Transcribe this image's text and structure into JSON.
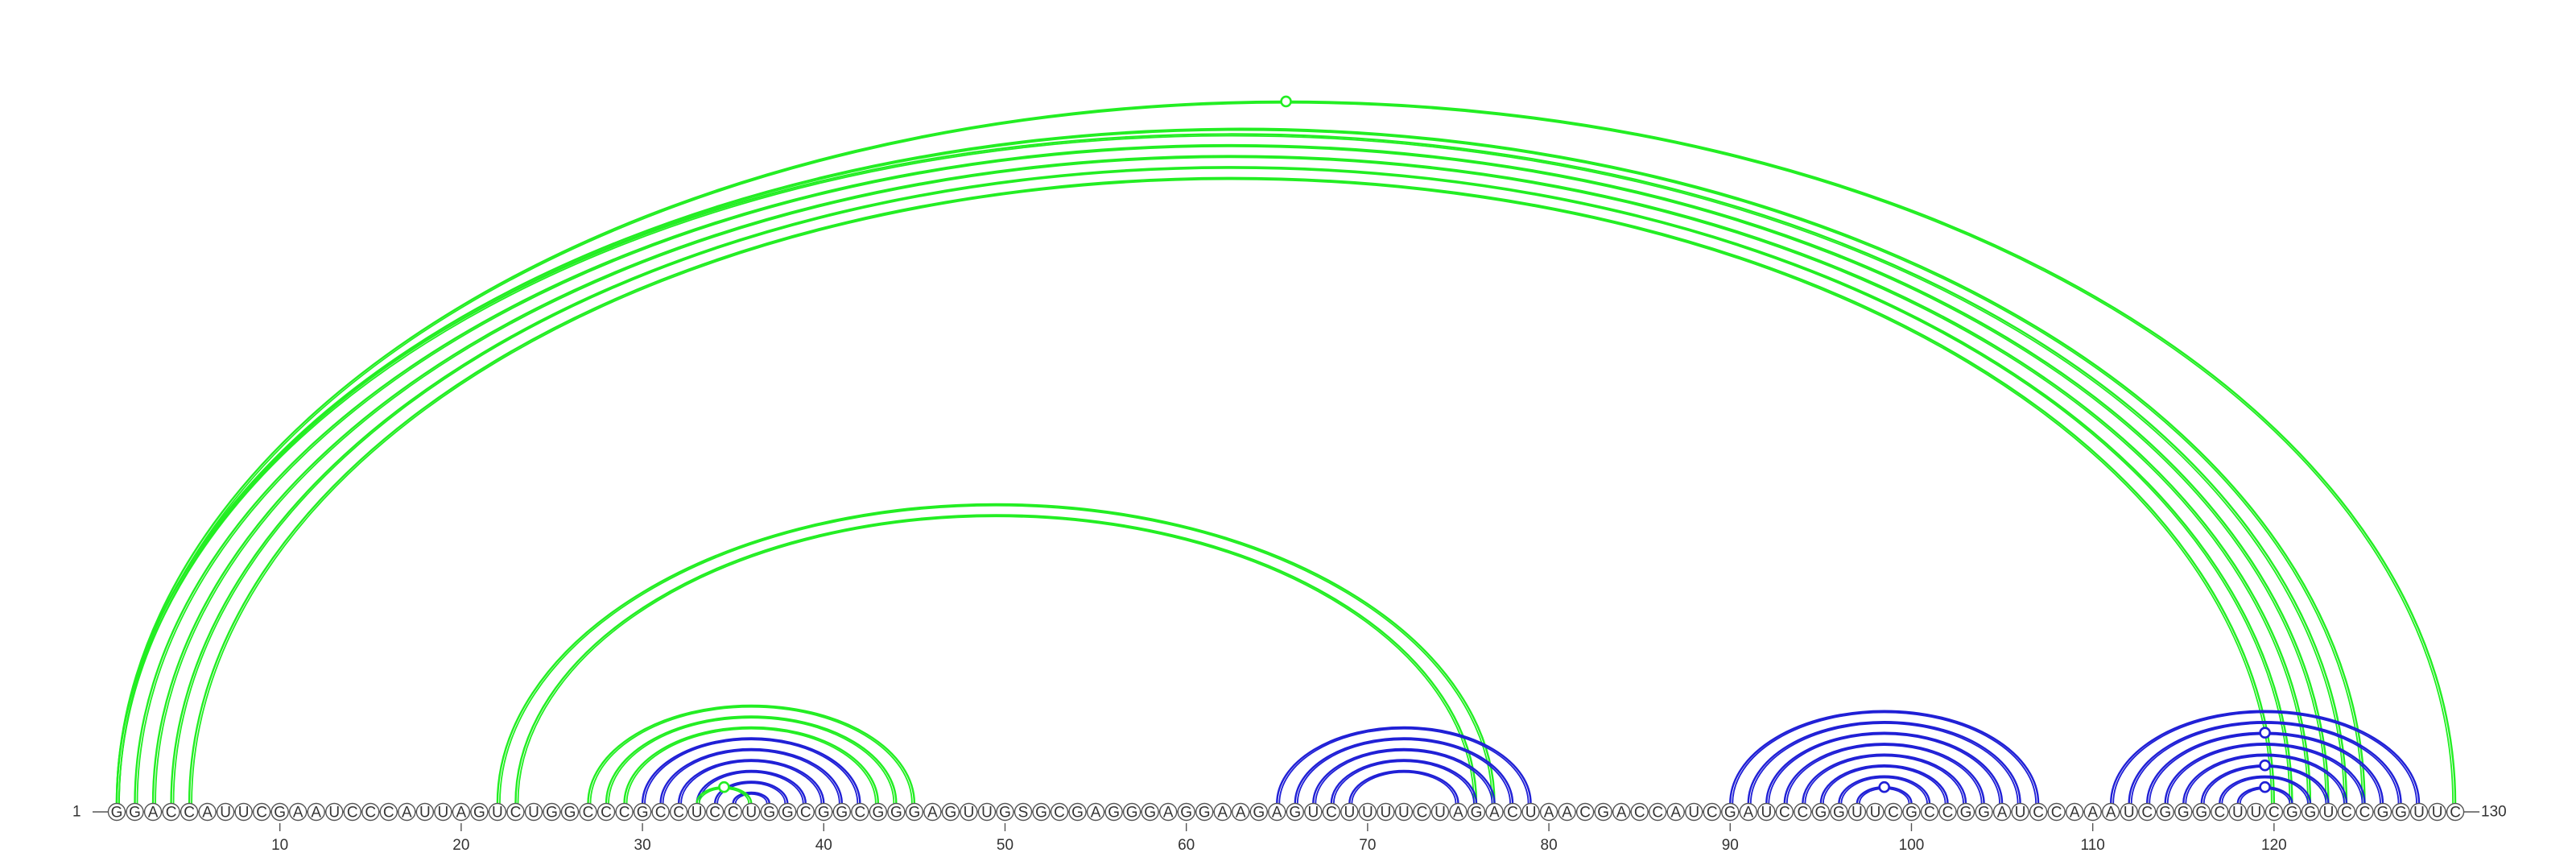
{
  "sequence": "GGACCAUUCGAAUCCCAUUAGUCUGGCCCGCCUCCUGGCGGCGGGAGUUGSGCGAGGGAGGAAGAGUCUUUUCUAGACUAACGACCAUCGAUCCGGUUCGCCGGAUCCAAAUCGGGCUUCGGUCCGGUUC",
  "start_label": "1",
  "end_label": "130",
  "ticks": [
    "10",
    "20",
    "30",
    "40",
    "50",
    "60",
    "70",
    "80",
    "90",
    "100",
    "110",
    "120"
  ],
  "tick_step": 10,
  "colors": {
    "green": "#22ee22",
    "blue": "#1f1fd6",
    "node_stroke": "#555555",
    "text": "#333333"
  },
  "arcs": [
    {
      "i": 1,
      "j": 125,
      "color": "green",
      "double": true
    },
    {
      "i": 1,
      "j": 124,
      "color": "green",
      "double": true
    },
    {
      "i": 2,
      "j": 123,
      "color": "green",
      "double": true
    },
    {
      "i": 3,
      "j": 122,
      "color": "green",
      "double": true
    },
    {
      "i": 4,
      "j": 121,
      "color": "green",
      "double": true
    },
    {
      "i": 5,
      "j": 120,
      "color": "green",
      "double": true
    },
    {
      "i": 1,
      "j": 130,
      "color": "green",
      "double": true
    },
    {
      "i": 22,
      "j": 77,
      "color": "green",
      "double": true
    },
    {
      "i": 23,
      "j": 76,
      "color": "green",
      "double": true
    },
    {
      "i": 27,
      "j": 45,
      "color": "green",
      "double": true
    },
    {
      "i": 28,
      "j": 44,
      "color": "green",
      "double": true
    },
    {
      "i": 29,
      "j": 43,
      "color": "green",
      "double": true
    },
    {
      "i": 30,
      "j": 42,
      "color": "blue",
      "double": true
    },
    {
      "i": 31,
      "j": 41,
      "color": "blue",
      "double": true
    },
    {
      "i": 32,
      "j": 40,
      "color": "blue",
      "double": true
    },
    {
      "i": 33,
      "j": 39,
      "color": "blue",
      "double": true
    },
    {
      "i": 34,
      "j": 38,
      "color": "blue",
      "double": true
    },
    {
      "i": 35,
      "j": 37,
      "color": "blue",
      "double": true
    },
    {
      "i": 33,
      "j": 36,
      "color": "green",
      "double": true
    },
    {
      "i": 65,
      "j": 79,
      "color": "blue",
      "double": true
    },
    {
      "i": 66,
      "j": 78,
      "color": "blue",
      "double": true
    },
    {
      "i": 67,
      "j": 77,
      "color": "blue",
      "double": true
    },
    {
      "i": 68,
      "j": 76,
      "color": "blue",
      "double": true
    },
    {
      "i": 69,
      "j": 75,
      "color": "blue",
      "double": true
    },
    {
      "i": 90,
      "j": 107,
      "color": "blue",
      "double": true
    },
    {
      "i": 91,
      "j": 106,
      "color": "blue",
      "double": true
    },
    {
      "i": 92,
      "j": 105,
      "color": "blue",
      "double": true
    },
    {
      "i": 93,
      "j": 104,
      "color": "blue",
      "double": true
    },
    {
      "i": 94,
      "j": 103,
      "color": "blue",
      "double": true
    },
    {
      "i": 95,
      "j": 102,
      "color": "blue",
      "double": true
    },
    {
      "i": 96,
      "j": 101,
      "color": "blue",
      "double": true
    },
    {
      "i": 97,
      "j": 100,
      "color": "blue",
      "double": true
    },
    {
      "i": 111,
      "j": 128,
      "color": "blue",
      "double": true
    },
    {
      "i": 112,
      "j": 127,
      "color": "blue",
      "double": true
    },
    {
      "i": 113,
      "j": 126,
      "color": "blue",
      "double": true
    },
    {
      "i": 114,
      "j": 125,
      "color": "blue",
      "double": true
    },
    {
      "i": 115,
      "j": 124,
      "color": "blue",
      "double": true
    },
    {
      "i": 116,
      "j": 123,
      "color": "blue",
      "double": true
    },
    {
      "i": 117,
      "j": 122,
      "color": "blue",
      "double": true
    },
    {
      "i": 118,
      "j": 121,
      "color": "blue",
      "double": true
    }
  ],
  "markers": [
    {
      "i": 1,
      "j": 130,
      "color": "green",
      "filled": false
    },
    {
      "i": 33,
      "j": 36,
      "color": "green",
      "filled": true
    },
    {
      "i": 97,
      "j": 100,
      "color": "blue",
      "filled": false
    },
    {
      "i": 118,
      "j": 121,
      "color": "blue",
      "filled": false
    },
    {
      "i": 116,
      "j": 123,
      "color": "blue",
      "filled": false
    },
    {
      "i": 113,
      "j": 126,
      "color": "blue",
      "filled": false
    }
  ]
}
